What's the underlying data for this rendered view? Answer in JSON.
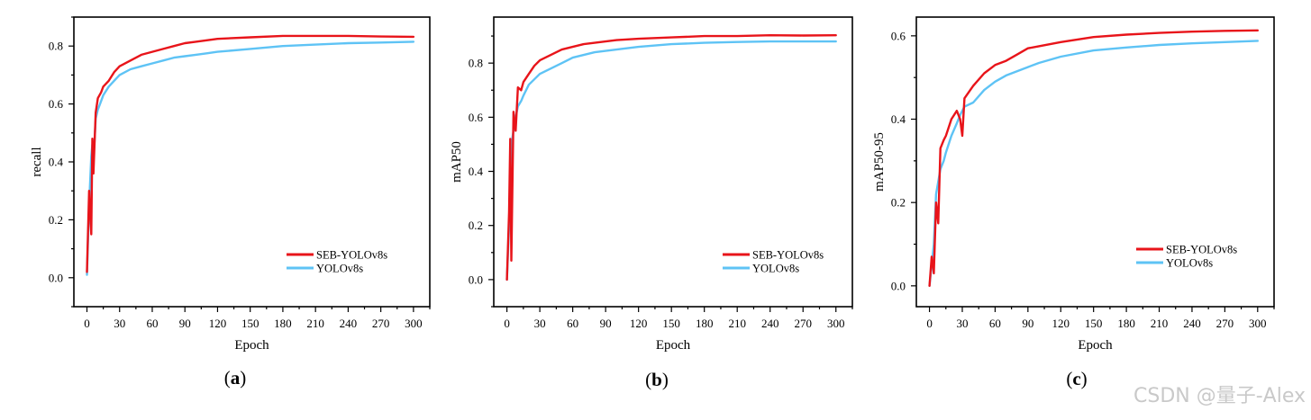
{
  "colors": {
    "seb": "#e8141a",
    "yolo": "#5ec3f5",
    "axis": "#000000",
    "watermark": "#c9c9c9"
  },
  "watermark": "CSDN @量子-Alex",
  "chart_data": [
    {
      "type": "line",
      "panel_label": "a",
      "xlabel": "Epoch",
      "ylabel": "recall",
      "xlim": [
        -12,
        315
      ],
      "ylim": [
        -0.1,
        0.9
      ],
      "xticks": [
        0,
        30,
        60,
        90,
        120,
        150,
        180,
        210,
        240,
        270,
        300
      ],
      "yticks": [
        0.0,
        0.2,
        0.4,
        0.6,
        0.8
      ],
      "yticklabels": [
        "0.0",
        "0.2",
        "0.4",
        "0.6",
        "0.8"
      ],
      "legend_position": "lower-right",
      "series": [
        {
          "name": "SEB-YOLOv8s",
          "color": "#e8141a",
          "x": [
            0,
            2,
            4,
            5,
            6,
            8,
            10,
            13,
            15,
            20,
            25,
            30,
            40,
            50,
            60,
            70,
            80,
            90,
            100,
            110,
            120,
            150,
            180,
            210,
            240,
            270,
            300
          ],
          "y": [
            0.02,
            0.3,
            0.15,
            0.48,
            0.36,
            0.57,
            0.62,
            0.64,
            0.66,
            0.68,
            0.71,
            0.73,
            0.75,
            0.77,
            0.78,
            0.79,
            0.8,
            0.81,
            0.815,
            0.82,
            0.825,
            0.83,
            0.835,
            0.835,
            0.835,
            0.833,
            0.832
          ]
        },
        {
          "name": "YOLOv8s",
          "color": "#5ec3f5",
          "x": [
            0,
            2,
            4,
            5,
            6,
            8,
            10,
            13,
            15,
            20,
            25,
            30,
            40,
            50,
            60,
            70,
            80,
            90,
            100,
            110,
            120,
            150,
            180,
            210,
            240,
            270,
            300
          ],
          "y": [
            0.01,
            0.25,
            0.42,
            0.46,
            0.4,
            0.55,
            0.58,
            0.61,
            0.63,
            0.66,
            0.68,
            0.7,
            0.72,
            0.73,
            0.74,
            0.75,
            0.76,
            0.765,
            0.77,
            0.775,
            0.78,
            0.79,
            0.8,
            0.805,
            0.81,
            0.812,
            0.815
          ]
        }
      ]
    },
    {
      "type": "line",
      "panel_label": "b",
      "xlabel": "Epoch",
      "ylabel": "mAP50",
      "xlim": [
        -12,
        315
      ],
      "ylim": [
        -0.1,
        0.97
      ],
      "xticks": [
        0,
        30,
        60,
        90,
        120,
        150,
        180,
        210,
        240,
        270,
        300
      ],
      "yticks": [
        0.0,
        0.2,
        0.4,
        0.6,
        0.8
      ],
      "yticklabels": [
        "0.0",
        "0.2",
        "0.4",
        "0.6",
        "0.8"
      ],
      "legend_position": "lower-right",
      "series": [
        {
          "name": "SEB-YOLOv8s",
          "color": "#e8141a",
          "x": [
            0,
            2,
            3,
            4,
            6,
            8,
            10,
            13,
            15,
            20,
            25,
            30,
            40,
            50,
            60,
            70,
            80,
            90,
            100,
            120,
            150,
            180,
            210,
            240,
            270,
            300
          ],
          "y": [
            0.0,
            0.25,
            0.52,
            0.07,
            0.62,
            0.55,
            0.71,
            0.7,
            0.73,
            0.76,
            0.79,
            0.81,
            0.83,
            0.85,
            0.86,
            0.87,
            0.875,
            0.88,
            0.885,
            0.89,
            0.895,
            0.9,
            0.9,
            0.903,
            0.902,
            0.903
          ]
        },
        {
          "name": "YOLOv8s",
          "color": "#5ec3f5",
          "x": [
            0,
            2,
            3,
            4,
            6,
            8,
            10,
            13,
            15,
            20,
            25,
            30,
            40,
            50,
            60,
            70,
            80,
            90,
            100,
            120,
            150,
            180,
            210,
            240,
            270,
            300
          ],
          "y": [
            0.0,
            0.2,
            0.4,
            0.5,
            0.55,
            0.6,
            0.64,
            0.66,
            0.68,
            0.72,
            0.74,
            0.76,
            0.78,
            0.8,
            0.82,
            0.83,
            0.84,
            0.845,
            0.85,
            0.86,
            0.87,
            0.875,
            0.878,
            0.88,
            0.88,
            0.88
          ]
        }
      ]
    },
    {
      "type": "line",
      "panel_label": "c",
      "xlabel": "Epoch",
      "ylabel": "mAP50-95",
      "xlim": [
        -12,
        315
      ],
      "ylim": [
        -0.05,
        0.645
      ],
      "xticks": [
        0,
        30,
        60,
        90,
        120,
        150,
        180,
        210,
        240,
        270,
        300
      ],
      "yticks": [
        0.0,
        0.2,
        0.4,
        0.6
      ],
      "yticklabels": [
        "0.0",
        "0.2",
        "0.4",
        "0.6"
      ],
      "legend_position": "lower-right",
      "series": [
        {
          "name": "SEB-YOLOv8s",
          "color": "#e8141a",
          "x": [
            0,
            2,
            4,
            6,
            8,
            10,
            13,
            15,
            20,
            25,
            28,
            30,
            32,
            40,
            50,
            60,
            70,
            80,
            90,
            100,
            120,
            150,
            180,
            210,
            240,
            270,
            300
          ],
          "y": [
            0.0,
            0.07,
            0.03,
            0.2,
            0.15,
            0.33,
            0.35,
            0.36,
            0.4,
            0.42,
            0.4,
            0.36,
            0.45,
            0.48,
            0.51,
            0.53,
            0.54,
            0.555,
            0.57,
            0.575,
            0.585,
            0.597,
            0.603,
            0.607,
            0.61,
            0.612,
            0.613
          ]
        },
        {
          "name": "YOLOv8s",
          "color": "#5ec3f5",
          "x": [
            0,
            2,
            4,
            6,
            8,
            10,
            13,
            15,
            20,
            25,
            28,
            30,
            32,
            40,
            50,
            60,
            70,
            80,
            90,
            100,
            120,
            150,
            180,
            210,
            240,
            270,
            300
          ],
          "y": [
            0.0,
            0.05,
            0.1,
            0.22,
            0.25,
            0.28,
            0.3,
            0.32,
            0.36,
            0.39,
            0.41,
            0.42,
            0.43,
            0.44,
            0.47,
            0.49,
            0.505,
            0.515,
            0.525,
            0.535,
            0.55,
            0.565,
            0.572,
            0.578,
            0.582,
            0.585,
            0.588
          ]
        }
      ]
    }
  ]
}
